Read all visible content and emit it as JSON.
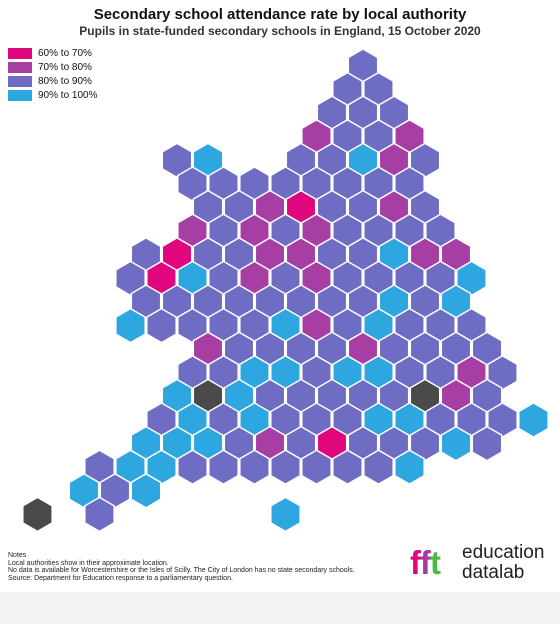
{
  "title": "Secondary school attendance rate by local authority",
  "subtitle": "Pupils in state-funded secondary schools in England, 15 October 2020",
  "legend": [
    {
      "label": "60% to 70%",
      "color": "#e0067e"
    },
    {
      "label": "70% to 80%",
      "color": "#a63ea3"
    },
    {
      "label": "80% to 90%",
      "color": "#6f6cc4"
    },
    {
      "label": "90% to 100%",
      "color": "#2ea6e0"
    }
  ],
  "nodata_color": "#4a4a4a",
  "notes": [
    "Notes",
    "Local authorities show in their approximate location.",
    "No data is available for Worcestershire or the Isles of Scilly. The City of London has no state secondary schools.",
    "Source: Department for Education response to a parliamentary question."
  ],
  "logo": {
    "mark": [
      "f",
      "f",
      "t"
    ],
    "line1": "education",
    "line2": "datalab"
  },
  "map_data": {
    "type": "hex tile map",
    "columns": [
      "c1",
      "c2",
      "c3",
      "c4",
      "c5",
      "c6",
      "c7",
      "c8",
      "c9",
      "c10",
      "c11",
      "c12",
      "c13",
      "c14",
      "c15",
      "c16",
      "c17",
      "c18",
      "c19",
      "c20",
      "c21",
      "c22",
      "c23",
      "c24",
      "c25",
      "c26",
      "c27",
      "c28",
      "c29",
      "c30",
      "c31",
      "c32",
      "c33",
      "c34",
      "c35",
      "c36"
    ],
    "rows": [
      {
        "band": "",
        "cells": {
          "c23": "80-90"
        }
      },
      {
        "band": "",
        "cells": {
          "c22": "80-90",
          "c24": "80-90"
        }
      },
      {
        "band": "",
        "cells": {
          "c21": "80-90",
          "c23": "80-90",
          "c25": "80-90"
        }
      },
      {
        "band": "",
        "cells": {
          "c20": "70-80",
          "c22": "80-90",
          "c24": "80-90",
          "c26": "70-80"
        }
      },
      {
        "band": "",
        "cells": {
          "c11": "80-90",
          "c13": "90-100",
          "c19": "80-90",
          "c21": "80-90",
          "c23": "90-100",
          "c25": "70-80",
          "c27": "80-90"
        }
      },
      {
        "band": "",
        "cells": {
          "c12": "80-90",
          "c14": "80-90",
          "c16": "80-90",
          "c18": "80-90",
          "c20": "80-90",
          "c22": "80-90",
          "c24": "80-90",
          "c26": "80-90"
        }
      },
      {
        "band": "",
        "cells": {
          "c13": "80-90",
          "c15": "80-90",
          "c17": "70-80",
          "c19": "60-70",
          "c21": "80-90",
          "c23": "80-90",
          "c25": "70-80",
          "c27": "80-90"
        }
      },
      {
        "band": "",
        "cells": {
          "c12": "70-80",
          "c14": "80-90",
          "c16": "70-80",
          "c18": "80-90",
          "c20": "70-80",
          "c22": "80-90",
          "c24": "80-90",
          "c26": "80-90",
          "c28": "80-90"
        }
      },
      {
        "band": "",
        "cells": {
          "c9": "80-90",
          "c11": "60-70",
          "c13": "80-90",
          "c15": "80-90",
          "c17": "70-80",
          "c19": "70-80",
          "c21": "80-90",
          "c23": "80-90",
          "c25": "90-100",
          "c27": "70-80",
          "c29": "70-80"
        }
      },
      {
        "band": "",
        "cells": {
          "c8": "80-90",
          "c10": "60-70",
          "c12": "90-100",
          "c14": "80-90",
          "c16": "70-80",
          "c18": "80-90",
          "c20": "70-80",
          "c22": "80-90",
          "c24": "80-90",
          "c26": "80-90",
          "c28": "80-90",
          "c30": "90-100"
        }
      },
      {
        "band": "",
        "cells": {
          "c9": "80-90",
          "c11": "80-90",
          "c13": "80-90",
          "c15": "80-90",
          "c17": "80-90",
          "c19": "80-90",
          "c21": "80-90",
          "c23": "80-90",
          "c25": "90-100",
          "c27": "80-90",
          "c29": "90-100"
        }
      },
      {
        "band": "",
        "cells": {
          "c8": "90-100",
          "c10": "80-90",
          "c12": "80-90",
          "c14": "80-90",
          "c16": "80-90",
          "c18": "90-100",
          "c20": "70-80",
          "c22": "80-90",
          "c24": "90-100",
          "c26": "80-90",
          "c28": "80-90",
          "c30": "80-90"
        }
      },
      {
        "band": "",
        "cells": {
          "c13": "70-80",
          "c15": "80-90",
          "c17": "80-90",
          "c19": "80-90",
          "c21": "80-90",
          "c23": "70-80",
          "c25": "80-90",
          "c27": "80-90",
          "c29": "80-90",
          "c31": "80-90"
        }
      },
      {
        "band": "",
        "cells": {
          "c12": "80-90",
          "c14": "80-90",
          "c16": "90-100",
          "c18": "90-100",
          "c20": "80-90",
          "c22": "90-100",
          "c24": "90-100",
          "c26": "80-90",
          "c28": "80-90",
          "c30": "70-80",
          "c32": "80-90"
        }
      },
      {
        "band": "",
        "cells": {
          "c11": "90-100",
          "c13": "nodata",
          "c15": "90-100",
          "c17": "80-90",
          "c19": "80-90",
          "c21": "80-90",
          "c23": "80-90",
          "c25": "80-90",
          "c27": "nodata",
          "c29": "70-80",
          "c31": "80-90"
        }
      },
      {
        "band": "",
        "cells": {
          "c10": "80-90",
          "c12": "90-100",
          "c14": "80-90",
          "c16": "90-100",
          "c18": "80-90",
          "c20": "80-90",
          "c22": "80-90",
          "c24": "90-100",
          "c26": "90-100",
          "c28": "80-90",
          "c30": "80-90",
          "c32": "80-90",
          "c34": "90-100"
        }
      },
      {
        "band": "",
        "cells": {
          "c9": "90-100",
          "c11": "90-100",
          "c13": "90-100",
          "c15": "80-90",
          "c17": "70-80",
          "c19": "80-90",
          "c21": "60-70",
          "c23": "80-90",
          "c25": "80-90",
          "c27": "80-90",
          "c29": "90-100",
          "c31": "80-90"
        }
      },
      {
        "band": "",
        "cells": {
          "c6": "80-90",
          "c8": "90-100",
          "c10": "90-100",
          "c12": "80-90",
          "c14": "80-90",
          "c16": "80-90",
          "c18": "80-90",
          "c20": "80-90",
          "c22": "80-90",
          "c24": "80-90",
          "c26": "90-100"
        }
      },
      {
        "band": "",
        "cells": {
          "c5": "90-100",
          "c7": "80-90",
          "c9": "90-100"
        }
      },
      {
        "band": "",
        "cells": {
          "c2": "nodata",
          "c6": "80-90",
          "c18": "90-100"
        }
      }
    ]
  }
}
